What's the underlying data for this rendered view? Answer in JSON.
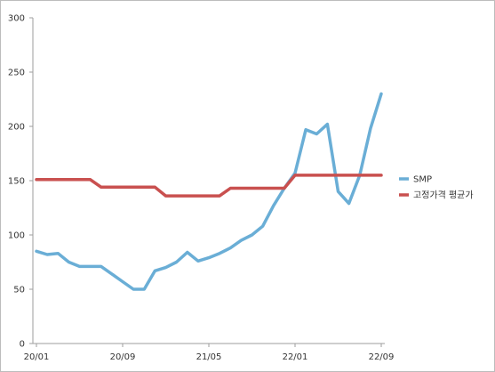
{
  "chart_data": {
    "type": "line",
    "title": "",
    "xlabel": "",
    "ylabel": "",
    "ylim": [
      0,
      300
    ],
    "yticks": [
      0,
      50,
      100,
      150,
      200,
      250,
      300
    ],
    "x_tick_labels": [
      "20/01",
      "20/09",
      "21/05",
      "22/01",
      "22/09"
    ],
    "x_tick_positions": [
      0,
      8,
      16,
      24,
      32
    ],
    "x_count": 33,
    "grid": false,
    "legend_position": "right",
    "series": [
      {
        "name": "SMP",
        "color": "#6aaed6",
        "values": [
          85,
          82,
          83,
          75,
          71,
          71,
          71,
          64,
          57,
          50,
          50,
          67,
          70,
          75,
          84,
          76,
          79,
          83,
          88,
          95,
          100,
          108,
          127,
          143,
          157,
          197,
          193,
          202,
          140,
          129,
          155,
          198,
          230
        ]
      },
      {
        "name": "고정가격 평균가",
        "color": "#c9504f",
        "values": [
          151,
          151,
          151,
          151,
          151,
          151,
          144,
          144,
          144,
          144,
          144,
          144,
          136,
          136,
          136,
          136,
          136,
          136,
          143,
          143,
          143,
          143,
          143,
          143,
          155,
          155,
          155,
          155,
          155,
          155,
          155,
          155,
          155
        ]
      }
    ]
  }
}
